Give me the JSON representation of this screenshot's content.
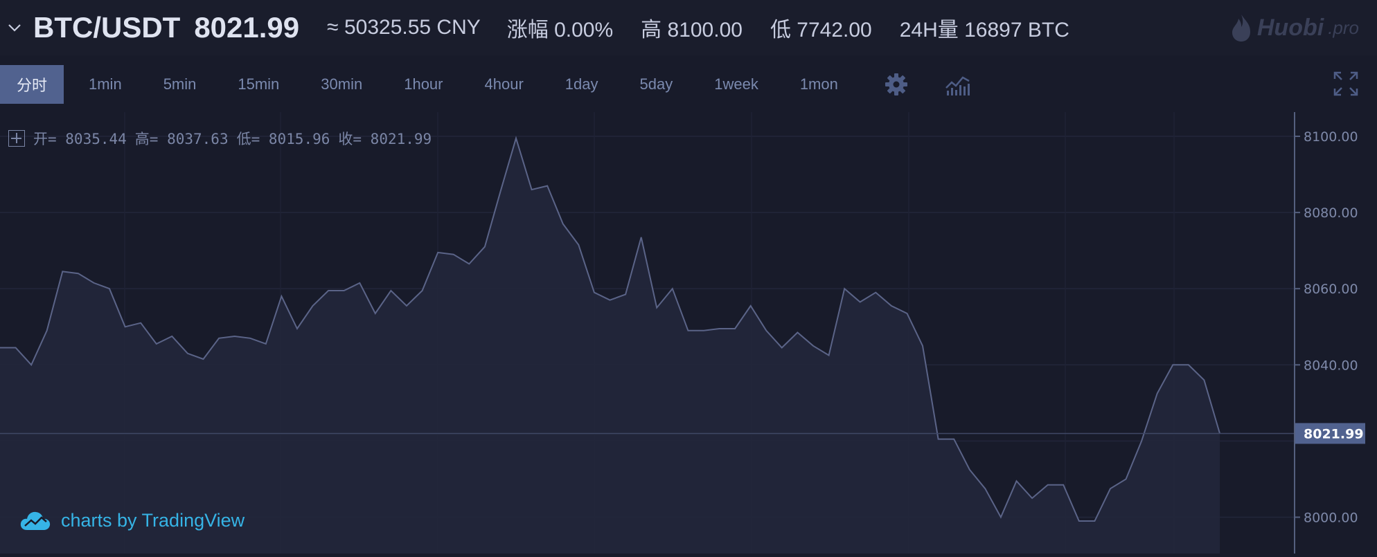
{
  "header": {
    "pair": "BTC/USDT",
    "price": "8021.99",
    "cny": "≈ 50325.55 CNY",
    "change": "涨幅 0.00%",
    "high": "高 8100.00",
    "low": "低 7742.00",
    "volume": "24H量 16897 BTC",
    "logo": "Huobi",
    "logo_suffix": ".pro"
  },
  "toolbar": {
    "intervals": [
      "分时",
      "1min",
      "5min",
      "15min",
      "30min",
      "1hour",
      "4hour",
      "1day",
      "5day",
      "1week",
      "1mon"
    ],
    "active_index": 0,
    "icons": [
      "gear-icon",
      "indicators-icon",
      "fullscreen-icon"
    ]
  },
  "legend": {
    "open": "开= 8035.44",
    "high": "高= 8037.63",
    "low": "低= 8015.96",
    "close": "收= 8021.99"
  },
  "watermark": "charts by TradingView",
  "colors": {
    "background": "#181b2a",
    "line": "#5b6488",
    "fill": "#22273b",
    "price_tag": "#51628f"
  },
  "chart_data": {
    "type": "area",
    "yticks": [
      "8100.00",
      "8080.00",
      "8060.00",
      "8040.00",
      "8000.00"
    ],
    "ylim": [
      7995,
      8103
    ],
    "current_price": "8021.99",
    "grid": true,
    "values": [
      8044.5,
      8044.5,
      8040.0,
      8049.0,
      8064.5,
      8064.0,
      8061.5,
      8060.0,
      8050.0,
      8051.0,
      8045.5,
      8047.5,
      8043.0,
      8041.5,
      8047.0,
      8047.5,
      8047.0,
      8045.5,
      8058.0,
      8049.5,
      8055.5,
      8059.5,
      8059.5,
      8061.5,
      8053.5,
      8059.5,
      8055.5,
      8059.5,
      8069.5,
      8069.0,
      8066.5,
      8071.0,
      8085.5,
      8099.5,
      8086.0,
      8087.0,
      8077.0,
      8071.5,
      8059.0,
      8057.0,
      8058.5,
      8073.5,
      8055.0,
      8060.0,
      8049.0,
      8049.0,
      8049.5,
      8049.5,
      8055.5,
      8049.0,
      8044.5,
      8048.5,
      8045.0,
      8042.5,
      8060.0,
      8056.5,
      8059.0,
      8055.5,
      8053.5,
      8045.0,
      8020.5,
      8020.5,
      8012.5,
      8007.5,
      8000.0,
      8009.5,
      8005.0,
      8008.5,
      8008.5,
      7999.0,
      7999.0,
      8007.5,
      8010.0,
      8020.0,
      8032.5,
      8040.0,
      8040.0,
      8036.0,
      8021.99
    ]
  }
}
